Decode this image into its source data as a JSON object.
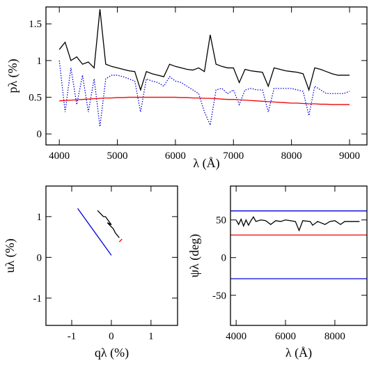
{
  "chart_data": [
    {
      "type": "line",
      "xlabel": "λ (Å)",
      "ylabel": "pλ (%)",
      "xlim": [
        3770,
        9300
      ],
      "ylim": [
        -0.15,
        1.73
      ],
      "xticks": [
        4000,
        5000,
        6000,
        7000,
        8000,
        9000
      ],
      "yticks": [
        0,
        0.5,
        1,
        1.5
      ],
      "x": [
        4000,
        4100,
        4200,
        4300,
        4400,
        4500,
        4600,
        4700,
        4800,
        4900,
        5000,
        5100,
        5200,
        5300,
        5400,
        5500,
        5600,
        5700,
        5800,
        5900,
        6000,
        6100,
        6200,
        6300,
        6400,
        6500,
        6600,
        6700,
        6800,
        6900,
        7000,
        7100,
        7200,
        7300,
        7400,
        7500,
        7600,
        7700,
        7800,
        7900,
        8000,
        8100,
        8200,
        8300,
        8400,
        8500,
        8600,
        8700,
        8800,
        8900,
        9000
      ],
      "series": [
        {
          "color": "#000000",
          "style": "solid",
          "values": [
            1.15,
            1.25,
            1.0,
            1.05,
            0.95,
            0.98,
            0.9,
            1.7,
            0.95,
            0.92,
            0.9,
            0.88,
            0.86,
            0.85,
            0.6,
            0.85,
            0.82,
            0.8,
            0.78,
            0.95,
            0.92,
            0.9,
            0.88,
            0.87,
            0.9,
            0.85,
            1.35,
            0.95,
            0.92,
            0.9,
            0.9,
            0.7,
            0.88,
            0.86,
            0.85,
            0.84,
            0.65,
            0.9,
            0.88,
            0.86,
            0.85,
            0.84,
            0.82,
            0.6,
            0.9,
            0.88,
            0.85,
            0.82,
            0.8,
            0.8,
            0.8
          ]
        },
        {
          "color": "#0000dd",
          "style": "dotted",
          "values": [
            1.0,
            0.3,
            0.9,
            0.4,
            0.8,
            0.3,
            0.75,
            0.1,
            0.75,
            0.8,
            0.8,
            0.78,
            0.75,
            0.72,
            0.3,
            0.75,
            0.72,
            0.7,
            0.65,
            0.78,
            0.72,
            0.7,
            0.65,
            0.6,
            0.55,
            0.3,
            0.12,
            0.6,
            0.62,
            0.55,
            0.6,
            0.4,
            0.6,
            0.62,
            0.6,
            0.6,
            0.3,
            0.62,
            0.62,
            0.62,
            0.62,
            0.6,
            0.58,
            0.25,
            0.65,
            0.6,
            0.55,
            0.55,
            0.55,
            0.55,
            0.58
          ]
        },
        {
          "color": "#ee0000",
          "style": "solid",
          "values": [
            0.45,
            0.455,
            0.46,
            0.465,
            0.47,
            0.475,
            0.48,
            0.485,
            0.49,
            0.49,
            0.495,
            0.495,
            0.5,
            0.5,
            0.5,
            0.5,
            0.5,
            0.5,
            0.5,
            0.5,
            0.5,
            0.495,
            0.495,
            0.49,
            0.49,
            0.485,
            0.485,
            0.48,
            0.475,
            0.47,
            0.47,
            0.465,
            0.46,
            0.455,
            0.45,
            0.445,
            0.44,
            0.435,
            0.43,
            0.425,
            0.42,
            0.42,
            0.415,
            0.41,
            0.41,
            0.405,
            0.405,
            0.4,
            0.4,
            0.4,
            0.4
          ]
        }
      ]
    },
    {
      "type": "line",
      "xlabel": "qλ (%)",
      "ylabel": "uλ (%)",
      "xlim": [
        -1.65,
        1.67
      ],
      "ylim": [
        -1.67,
        1.75
      ],
      "xticks": [
        -1,
        0,
        1
      ],
      "yticks": [
        -1,
        0,
        1
      ],
      "series": [
        {
          "color": "#000000",
          "style": "solid",
          "x": [
            -0.35,
            -0.2,
            -0.15,
            0,
            -0.1,
            0.05,
            0.1,
            0.2
          ],
          "values": [
            1.15,
            1.0,
            1.0,
            0.8,
            0.85,
            0.7,
            0.6,
            0.48
          ]
        },
        {
          "color": "#0000dd",
          "style": "solid",
          "x": [
            -0.85,
            0
          ],
          "values": [
            1.2,
            0.05
          ]
        },
        {
          "color": "#ee0000",
          "style": "solid",
          "x": [
            0.2,
            0.27
          ],
          "values": [
            0.38,
            0.45
          ]
        }
      ]
    },
    {
      "type": "line",
      "xlabel": "λ (Å)",
      "ylabel": "ψλ (deg)",
      "xlim": [
        3770,
        9300
      ],
      "ylim": [
        -90,
        95
      ],
      "xticks": [
        4000,
        6000,
        8000
      ],
      "yticks": [
        -50,
        0,
        50
      ],
      "series": [
        {
          "color": "#000000",
          "style": "solid",
          "x": [
            4000,
            4100,
            4200,
            4300,
            4400,
            4500,
            4600,
            4700,
            4800,
            5000,
            5200,
            5400,
            5600,
            5800,
            6000,
            6200,
            6400,
            6550,
            6700,
            7000,
            7100,
            7300,
            7600,
            7800,
            8000,
            8230,
            8400,
            8700,
            9000
          ],
          "values": [
            50,
            44,
            51,
            42,
            50,
            43,
            49,
            54,
            48,
            50,
            49,
            44,
            49,
            48,
            50,
            49,
            48,
            36,
            49,
            48,
            43,
            48,
            44,
            48,
            49,
            44,
            48,
            48,
            48
          ]
        },
        {
          "color": "#0000dd",
          "style": "solid",
          "x": [
            3770,
            9300
          ],
          "values": [
            62,
            62
          ]
        },
        {
          "color": "#ee0000",
          "style": "solid",
          "x": [
            3770,
            9300
          ],
          "values": [
            30,
            30
          ]
        },
        {
          "color": "#0000dd",
          "style": "solid",
          "x": [
            3770,
            9300
          ],
          "values": [
            -28,
            -28
          ]
        }
      ]
    }
  ]
}
